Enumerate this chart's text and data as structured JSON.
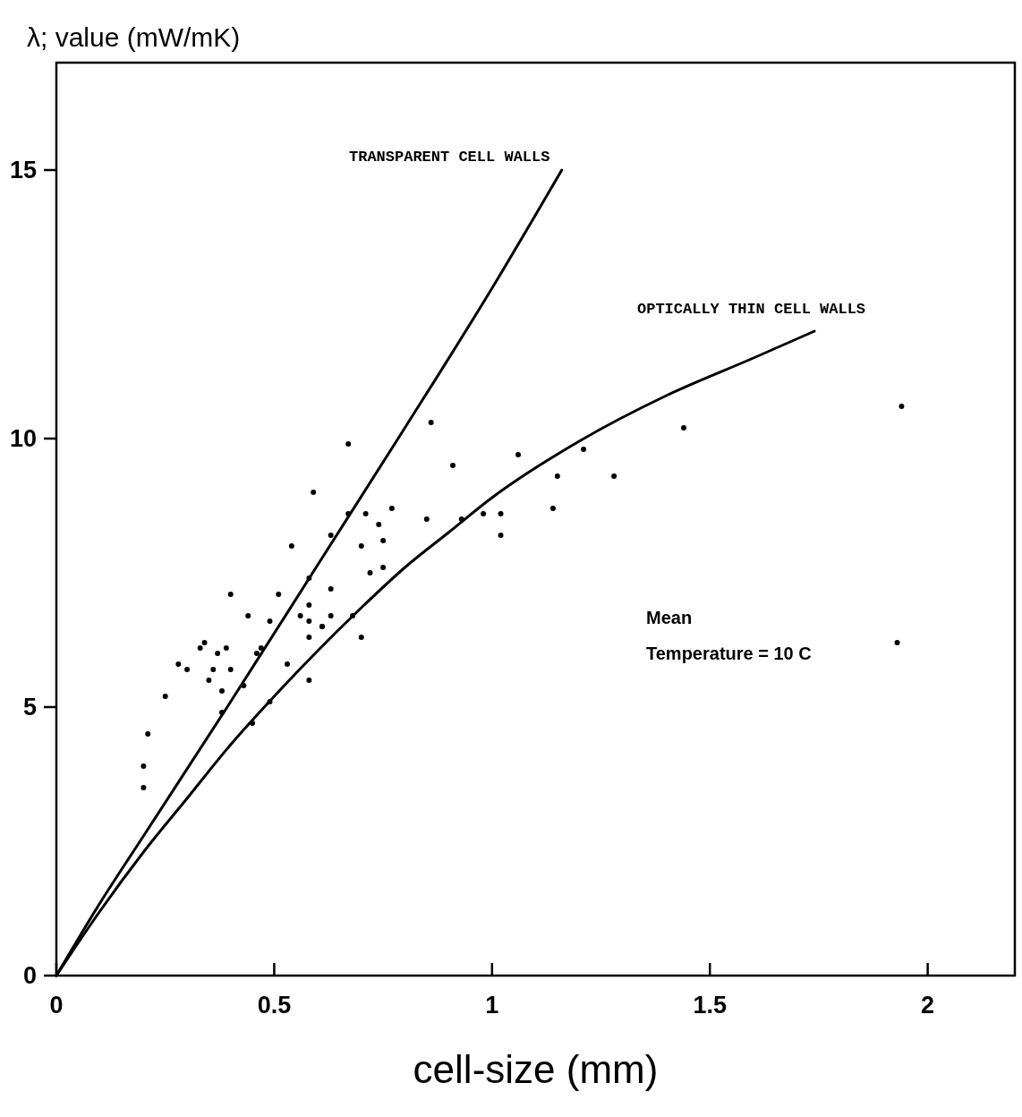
{
  "chart_data": {
    "type": "scatter",
    "xlabel": "cell-size (mm)",
    "ylabel": "λ; value (mW/mK)",
    "xlim": [
      0,
      2.2
    ],
    "ylim": [
      0,
      17
    ],
    "xticks": [
      0,
      0.5,
      1,
      1.5,
      2
    ],
    "yticks": [
      0,
      5,
      10,
      15
    ],
    "grid": false,
    "series": [
      {
        "color": "#000000",
        "marker": "circle",
        "x": [
          0.2,
          0.2,
          0.21,
          0.25,
          0.28,
          0.3,
          0.33,
          0.34,
          0.37,
          0.36,
          0.35,
          0.38,
          0.38,
          0.39,
          0.4,
          0.4,
          0.43,
          0.44,
          0.45,
          0.46,
          0.47,
          0.49,
          0.49,
          0.51,
          0.53,
          0.54,
          0.56,
          0.58,
          0.58,
          0.58,
          0.58,
          0.58,
          0.59,
          0.61,
          0.61,
          0.63,
          0.63,
          0.63,
          0.67,
          0.67,
          0.68,
          0.7,
          0.7,
          0.71,
          0.72,
          0.74,
          0.75,
          0.75,
          0.77,
          0.85,
          0.86,
          0.91,
          0.93,
          0.98,
          1.02,
          1.02,
          1.06,
          1.14,
          1.15,
          1.21,
          1.28,
          1.44,
          1.93,
          1.94
        ],
        "values": [
          3.9,
          3.5,
          4.5,
          5.2,
          5.8,
          5.7,
          6.1,
          6.2,
          6.0,
          5.7,
          5.5,
          4.9,
          5.3,
          6.1,
          5.7,
          7.1,
          5.4,
          6.7,
          4.7,
          6.0,
          6.1,
          5.1,
          6.6,
          7.1,
          5.8,
          8.0,
          6.7,
          6.6,
          7.4,
          6.9,
          6.3,
          5.5,
          9.0,
          6.5,
          6.5,
          8.2,
          7.2,
          6.7,
          8.6,
          9.9,
          6.7,
          8.0,
          6.3,
          8.6,
          7.5,
          8.4,
          8.1,
          7.6,
          8.7,
          8.5,
          10.3,
          9.5,
          8.5,
          8.6,
          8.2,
          8.6,
          9.7,
          8.7,
          9.3,
          9.8,
          9.3,
          10.2,
          6.2,
          10.6
        ]
      },
      {
        "type": "line",
        "color": "#000000",
        "line_style": "solid",
        "x": [
          0,
          0.1,
          0.2,
          0.4,
          0.6,
          0.8,
          1.0,
          1.16
        ],
        "values": [
          0,
          1.35,
          2.6,
          5.1,
          7.65,
          10.2,
          12.8,
          15.0
        ]
      },
      {
        "type": "line",
        "color": "#000000",
        "line_style": "solid",
        "x": [
          0,
          0.1,
          0.2,
          0.3,
          0.4,
          0.5,
          0.6,
          0.7,
          0.8,
          0.9,
          1.0,
          1.2,
          1.4,
          1.6,
          1.74
        ],
        "values": [
          0,
          1.2,
          2.3,
          3.3,
          4.3,
          5.2,
          6.05,
          6.85,
          7.6,
          8.25,
          8.9,
          9.95,
          10.8,
          11.5,
          12.0
        ]
      }
    ],
    "annotations": [
      "TRANSPARENT CELL WALLS",
      "OPTICALLY THIN CELL WALLS",
      "Mean",
      "Temperature = 10 C"
    ]
  }
}
